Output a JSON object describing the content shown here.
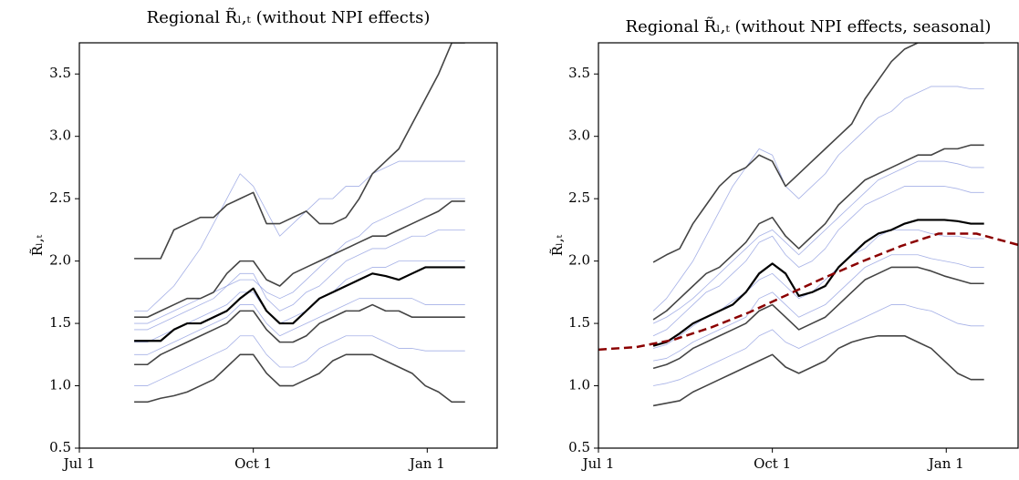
{
  "chart_data": [
    {
      "type": "line",
      "title": "Regional R̃ₗ,ₜ (without NPI effects)",
      "ylabel": "R̃ₗ,ₜ",
      "xlim": [
        0,
        221
      ],
      "ylim": [
        0.5,
        3.75
      ],
      "xticks": [
        {
          "value": 0,
          "label": "Jul 1"
        },
        {
          "value": 92,
          "label": "Oct 1"
        },
        {
          "value": 184,
          "label": "Jan 1"
        }
      ],
      "yticks": [
        0.5,
        {
          "value": 1,
          "label": "1.0"
        },
        1.5,
        {
          "value": 2,
          "label": "2.0"
        },
        2.5,
        {
          "value": 3,
          "label": "3.0"
        },
        3.5
      ],
      "x": [
        29,
        36,
        43,
        50,
        57,
        64,
        71,
        78,
        85,
        92,
        99,
        106,
        113,
        120,
        127,
        134,
        141,
        148,
        155,
        162,
        169,
        176,
        183,
        190,
        197,
        204
      ],
      "series": [
        {
          "color": "#7f8fdb",
          "width": 0.8,
          "values": [
            1.45,
            1.45,
            1.5,
            1.55,
            1.6,
            1.65,
            1.7,
            1.8,
            1.9,
            1.9,
            1.7,
            1.6,
            1.65,
            1.75,
            1.8,
            1.9,
            2.0,
            2.05,
            2.1,
            2.1,
            2.15,
            2.2,
            2.2,
            2.25,
            2.25,
            2.25
          ]
        },
        {
          "color": "#7f8fdb",
          "width": 0.8,
          "values": [
            1.25,
            1.25,
            1.3,
            1.35,
            1.4,
            1.45,
            1.5,
            1.55,
            1.65,
            1.65,
            1.5,
            1.4,
            1.45,
            1.5,
            1.55,
            1.6,
            1.65,
            1.7,
            1.7,
            1.7,
            1.7,
            1.7,
            1.65,
            1.65,
            1.65,
            1.65
          ]
        },
        {
          "color": "#7f8fdb",
          "width": 0.8,
          "values": [
            1.6,
            1.6,
            1.7,
            1.8,
            1.95,
            2.1,
            2.3,
            2.5,
            2.7,
            2.6,
            2.4,
            2.2,
            2.3,
            2.4,
            2.5,
            2.5,
            2.6,
            2.6,
            2.7,
            2.75,
            2.8,
            2.8,
            2.8,
            2.8,
            2.8,
            2.8
          ]
        },
        {
          "color": "#7f8fdb",
          "width": 0.8,
          "values": [
            1.0,
            1.0,
            1.05,
            1.1,
            1.15,
            1.2,
            1.25,
            1.3,
            1.4,
            1.4,
            1.25,
            1.15,
            1.15,
            1.2,
            1.3,
            1.35,
            1.4,
            1.4,
            1.4,
            1.35,
            1.3,
            1.3,
            1.28,
            1.28,
            1.28,
            1.28
          ]
        },
        {
          "color": "#7f8fdb",
          "width": 0.8,
          "values": [
            1.35,
            1.35,
            1.4,
            1.45,
            1.5,
            1.55,
            1.6,
            1.65,
            1.75,
            1.75,
            1.6,
            1.5,
            1.55,
            1.6,
            1.7,
            1.75,
            1.85,
            1.9,
            1.95,
            1.95,
            2.0,
            2.0,
            2.0,
            2.0,
            2.0,
            2.0
          ]
        },
        {
          "color": "#7f8fdb",
          "width": 0.8,
          "values": [
            1.5,
            1.5,
            1.55,
            1.6,
            1.65,
            1.7,
            1.75,
            1.8,
            1.85,
            1.85,
            1.75,
            1.7,
            1.75,
            1.85,
            1.95,
            2.05,
            2.15,
            2.2,
            2.3,
            2.35,
            2.4,
            2.45,
            2.5,
            2.5,
            2.5,
            2.5
          ]
        },
        {
          "color": "#444444",
          "width": 1.6,
          "values": [
            2.02,
            2.02,
            2.02,
            2.25,
            2.3,
            2.35,
            2.35,
            2.45,
            2.5,
            2.55,
            2.3,
            2.3,
            2.35,
            2.4,
            2.3,
            2.3,
            2.35,
            2.5,
            2.7,
            2.8,
            2.9,
            3.1,
            3.3,
            3.5,
            3.75,
            3.75
          ]
        },
        {
          "color": "#444444",
          "width": 1.6,
          "values": [
            1.55,
            1.55,
            1.6,
            1.65,
            1.7,
            1.7,
            1.75,
            1.9,
            2.0,
            2.0,
            1.85,
            1.8,
            1.9,
            1.95,
            2.0,
            2.05,
            2.1,
            2.15,
            2.2,
            2.2,
            2.25,
            2.3,
            2.35,
            2.4,
            2.48,
            2.48
          ]
        },
        {
          "color": "#444444",
          "width": 1.6,
          "values": [
            1.17,
            1.17,
            1.25,
            1.3,
            1.35,
            1.4,
            1.45,
            1.5,
            1.6,
            1.6,
            1.45,
            1.35,
            1.35,
            1.4,
            1.5,
            1.55,
            1.6,
            1.6,
            1.65,
            1.6,
            1.6,
            1.55,
            1.55,
            1.55,
            1.55,
            1.55
          ]
        },
        {
          "color": "#444444",
          "width": 1.6,
          "values": [
            0.87,
            0.87,
            0.9,
            0.92,
            0.95,
            1.0,
            1.05,
            1.15,
            1.25,
            1.25,
            1.1,
            1.0,
            1.0,
            1.05,
            1.1,
            1.2,
            1.25,
            1.25,
            1.25,
            1.2,
            1.15,
            1.1,
            1.0,
            0.95,
            0.87,
            0.87
          ]
        },
        {
          "color": "#000000",
          "width": 2.2,
          "values": [
            1.36,
            1.36,
            1.36,
            1.45,
            1.5,
            1.5,
            1.55,
            1.6,
            1.7,
            1.78,
            1.6,
            1.5,
            1.5,
            1.6,
            1.7,
            1.75,
            1.8,
            1.85,
            1.9,
            1.88,
            1.85,
            1.9,
            1.95,
            1.95,
            1.95,
            1.95
          ]
        }
      ]
    },
    {
      "type": "line",
      "title": "Regional R̃ₗ,ₜ (without NPI effects, seasonal)",
      "ylabel": "R̃ₗ,ₜ",
      "xlim": [
        0,
        222
      ],
      "ylim": [
        0.5,
        3.75
      ],
      "xticks": [
        {
          "value": 0,
          "label": "Jul 1"
        },
        {
          "value": 92,
          "label": "Oct 1"
        },
        {
          "value": 184,
          "label": "Jan 1"
        }
      ],
      "yticks": [
        0.5,
        {
          "value": 1,
          "label": "1.0"
        },
        1.5,
        {
          "value": 2,
          "label": "2.0"
        },
        2.5,
        {
          "value": 3,
          "label": "3.0"
        },
        3.5
      ],
      "x": [
        29,
        36,
        43,
        50,
        57,
        64,
        71,
        78,
        85,
        92,
        99,
        106,
        113,
        120,
        127,
        134,
        141,
        148,
        155,
        162,
        169,
        176,
        183,
        190,
        197,
        204
      ],
      "series": [
        {
          "color": "#7f8fdb",
          "width": 0.8,
          "values": [
            1.4,
            1.45,
            1.55,
            1.65,
            1.75,
            1.8,
            1.9,
            2.0,
            2.15,
            2.2,
            2.05,
            1.95,
            2.0,
            2.1,
            2.25,
            2.35,
            2.45,
            2.5,
            2.55,
            2.6,
            2.6,
            2.6,
            2.6,
            2.58,
            2.55,
            2.55
          ]
        },
        {
          "color": "#7f8fdb",
          "width": 0.8,
          "values": [
            1.2,
            1.22,
            1.28,
            1.35,
            1.4,
            1.45,
            1.5,
            1.55,
            1.7,
            1.75,
            1.65,
            1.55,
            1.6,
            1.65,
            1.75,
            1.85,
            1.95,
            2.0,
            2.05,
            2.05,
            2.05,
            2.02,
            2.0,
            1.98,
            1.95,
            1.95
          ]
        },
        {
          "color": "#7f8fdb",
          "width": 0.8,
          "values": [
            1.6,
            1.7,
            1.85,
            2.0,
            2.2,
            2.4,
            2.6,
            2.75,
            2.9,
            2.85,
            2.6,
            2.5,
            2.6,
            2.7,
            2.85,
            2.95,
            3.05,
            3.15,
            3.2,
            3.3,
            3.35,
            3.4,
            3.4,
            3.4,
            3.38,
            3.38
          ]
        },
        {
          "color": "#7f8fdb",
          "width": 0.8,
          "values": [
            1.0,
            1.02,
            1.05,
            1.1,
            1.15,
            1.2,
            1.25,
            1.3,
            1.4,
            1.45,
            1.35,
            1.3,
            1.35,
            1.4,
            1.45,
            1.5,
            1.55,
            1.6,
            1.65,
            1.65,
            1.62,
            1.6,
            1.55,
            1.5,
            1.48,
            1.48
          ]
        },
        {
          "color": "#7f8fdb",
          "width": 0.8,
          "values": [
            1.3,
            1.33,
            1.4,
            1.48,
            1.55,
            1.6,
            1.68,
            1.75,
            1.85,
            1.9,
            1.8,
            1.7,
            1.75,
            1.85,
            1.95,
            2.05,
            2.1,
            2.2,
            2.25,
            2.25,
            2.25,
            2.22,
            2.2,
            2.2,
            2.18,
            2.18
          ]
        },
        {
          "color": "#7f8fdb",
          "width": 0.8,
          "values": [
            1.5,
            1.55,
            1.62,
            1.7,
            1.8,
            1.9,
            2.0,
            2.1,
            2.2,
            2.25,
            2.15,
            2.05,
            2.15,
            2.25,
            2.35,
            2.45,
            2.55,
            2.65,
            2.7,
            2.75,
            2.8,
            2.8,
            2.8,
            2.78,
            2.75,
            2.75
          ]
        },
        {
          "color": "#444444",
          "width": 1.6,
          "values": [
            1.99,
            2.05,
            2.1,
            2.3,
            2.45,
            2.6,
            2.7,
            2.75,
            2.85,
            2.8,
            2.6,
            2.7,
            2.8,
            2.9,
            3.0,
            3.1,
            3.3,
            3.45,
            3.6,
            3.7,
            3.75,
            3.75,
            3.75,
            3.75,
            3.75,
            3.75
          ]
        },
        {
          "color": "#444444",
          "width": 1.6,
          "values": [
            1.53,
            1.6,
            1.7,
            1.8,
            1.9,
            1.95,
            2.05,
            2.15,
            2.3,
            2.35,
            2.2,
            2.1,
            2.2,
            2.3,
            2.45,
            2.55,
            2.65,
            2.7,
            2.75,
            2.8,
            2.85,
            2.85,
            2.9,
            2.9,
            2.93,
            2.93
          ]
        },
        {
          "color": "#444444",
          "width": 1.6,
          "values": [
            1.14,
            1.17,
            1.22,
            1.3,
            1.35,
            1.4,
            1.45,
            1.5,
            1.6,
            1.65,
            1.55,
            1.45,
            1.5,
            1.55,
            1.65,
            1.75,
            1.85,
            1.9,
            1.95,
            1.95,
            1.95,
            1.92,
            1.88,
            1.85,
            1.82,
            1.82
          ]
        },
        {
          "color": "#444444",
          "width": 1.6,
          "values": [
            0.84,
            0.86,
            0.88,
            0.95,
            1.0,
            1.05,
            1.1,
            1.15,
            1.2,
            1.25,
            1.15,
            1.1,
            1.15,
            1.2,
            1.3,
            1.35,
            1.38,
            1.4,
            1.4,
            1.4,
            1.35,
            1.3,
            1.2,
            1.1,
            1.05,
            1.05
          ]
        },
        {
          "color": "#000000",
          "width": 2.2,
          "values": [
            1.32,
            1.35,
            1.42,
            1.5,
            1.55,
            1.6,
            1.65,
            1.75,
            1.9,
            1.98,
            1.9,
            1.72,
            1.75,
            1.8,
            1.95,
            2.05,
            2.15,
            2.22,
            2.25,
            2.3,
            2.33,
            2.33,
            2.33,
            2.32,
            2.3,
            2.3
          ]
        },
        {
          "color": "#8b0000",
          "width": 2.5,
          "dash": true,
          "x": [
            0,
            20,
            40,
            60,
            80,
            100,
            120,
            140,
            160,
            180,
            200,
            222
          ],
          "values": [
            1.29,
            1.31,
            1.37,
            1.47,
            1.59,
            1.73,
            1.87,
            2.0,
            2.12,
            2.22,
            2.22,
            2.13
          ]
        }
      ]
    }
  ]
}
